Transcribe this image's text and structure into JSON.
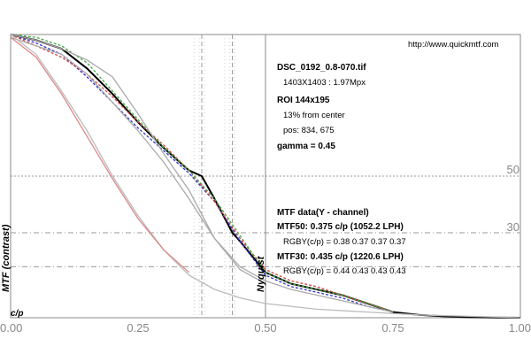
{
  "chart_data": {
    "type": "line",
    "xlabel": "c/p",
    "ylabel": "MTF (contrast)",
    "xlim": [
      0,
      1
    ],
    "ylim": [
      0,
      1
    ],
    "x_ticks": [
      "0.00",
      "0.25",
      "0.50",
      "0.75",
      "1.00"
    ],
    "x_tick_values": [
      0,
      0.25,
      0.5,
      0.75,
      1.0
    ],
    "ref_lines": [
      {
        "label": "50",
        "y": 0.5
      },
      {
        "label": "30",
        "y": 0.3
      }
    ],
    "extra_ref_y": [
      0.18
    ],
    "nyquist": {
      "label": "Nyquist",
      "x": 0.5
    },
    "marker_lines_x": [
      0.375,
      0.435
    ],
    "faint_lines_x": [
      0.36,
      0.37,
      0.38,
      0.42,
      0.43,
      0.44
    ],
    "series": [
      {
        "color": "#000000",
        "x": [
          0,
          0.05,
          0.1,
          0.15,
          0.2,
          0.25,
          0.3,
          0.35,
          0.375,
          0.4,
          0.435,
          0.45,
          0.5,
          0.55,
          0.6,
          0.65,
          0.7,
          0.75,
          0.8,
          0.85,
          0.9,
          0.95,
          1.0
        ],
        "y": [
          1.0,
          0.98,
          0.95,
          0.88,
          0.79,
          0.69,
          0.6,
          0.52,
          0.5,
          0.42,
          0.3,
          0.27,
          0.16,
          0.12,
          0.1,
          0.08,
          0.05,
          0.02,
          0.01,
          0.005,
          0.002,
          0.001,
          0
        ]
      },
      {
        "color": "#3333cc",
        "x": [
          0,
          0.05,
          0.1,
          0.15,
          0.2,
          0.25,
          0.3,
          0.35,
          0.4,
          0.45,
          0.5,
          0.55,
          0.6,
          0.65,
          0.7,
          0.75
        ],
        "y": [
          1.0,
          0.97,
          0.93,
          0.85,
          0.76,
          0.67,
          0.59,
          0.51,
          0.41,
          0.27,
          0.15,
          0.11,
          0.09,
          0.07,
          0.04,
          0.02
        ]
      },
      {
        "color": "#cc4444",
        "x": [
          0,
          0.05,
          0.1,
          0.15,
          0.2,
          0.25,
          0.3,
          0.35,
          0.4,
          0.45,
          0.5,
          0.55,
          0.6,
          0.65,
          0.7,
          0.75
        ],
        "y": [
          1.0,
          0.96,
          0.92,
          0.86,
          0.78,
          0.69,
          0.61,
          0.52,
          0.41,
          0.28,
          0.17,
          0.13,
          0.11,
          0.08,
          0.05,
          0.02
        ]
      },
      {
        "color": "#44aa44",
        "x": [
          0,
          0.05,
          0.1,
          0.15,
          0.2,
          0.25,
          0.3,
          0.35,
          0.4,
          0.45,
          0.5,
          0.55,
          0.6,
          0.65,
          0.7,
          0.75
        ],
        "y": [
          1.0,
          0.99,
          0.96,
          0.9,
          0.8,
          0.7,
          0.6,
          0.52,
          0.42,
          0.29,
          0.16,
          0.12,
          0.1,
          0.08,
          0.05,
          0.02
        ]
      },
      {
        "color": "#aaaaaa",
        "x": [
          0,
          0.05,
          0.1,
          0.15,
          0.2,
          0.25,
          0.3,
          0.35,
          0.4,
          0.45,
          0.5,
          0.55,
          0.6,
          0.65,
          0.7,
          0.75
        ],
        "y": [
          1.0,
          0.98,
          0.95,
          0.91,
          0.85,
          0.72,
          0.58,
          0.45,
          0.28,
          0.18,
          0.13,
          0.1,
          0.08,
          0.06,
          0.04,
          0.02
        ]
      },
      {
        "color": "#aaaaaa",
        "x": [
          0,
          0.05,
          0.1,
          0.15,
          0.2,
          0.25,
          0.3,
          0.35,
          0.4,
          0.45,
          0.5
        ],
        "y": [
          0.99,
          0.96,
          0.93,
          0.86,
          0.76,
          0.66,
          0.55,
          0.42,
          0.28,
          0.17,
          0.12
        ]
      },
      {
        "color": "#bbbbbb",
        "x": [
          0,
          0.05,
          0.1,
          0.15,
          0.2,
          0.25,
          0.3,
          0.35,
          0.4,
          0.45,
          0.5,
          0.6,
          0.7,
          0.8,
          0.9,
          1.0
        ],
        "y": [
          1.0,
          0.93,
          0.8,
          0.66,
          0.5,
          0.36,
          0.24,
          0.15,
          0.1,
          0.07,
          0.05,
          0.03,
          0.02,
          0.01,
          0.005,
          0
        ]
      },
      {
        "color": "#dd8888",
        "x": [
          0,
          0.05,
          0.1,
          0.15,
          0.2,
          0.25,
          0.3,
          0.35
        ],
        "y": [
          0.99,
          0.92,
          0.79,
          0.64,
          0.49,
          0.35,
          0.24,
          0.16
        ]
      }
    ]
  },
  "url": "http://www.quickmtf.com",
  "info": {
    "filename": "DSC_0192_0.8-070.tif",
    "dims": "1403X1403 : 1.97Mpx",
    "roi": "ROI 144x195",
    "center": "13% from center",
    "pos": "pos: 834, 675",
    "gamma": "gamma = 0.45"
  },
  "mtf": {
    "header": "MTF data(Y - channel)",
    "mtf50": "MTF50: 0.375 c/p (1052.2 LPH)",
    "rgby50": "RGBY(c/p) = 0.38 0.37 0.37 0.37",
    "mtf30": "MTF30: 0.435 c/p (1220.6 LPH)",
    "rgby30": "RGBY(c/p) = 0.44 0.43 0.43 0.43"
  }
}
